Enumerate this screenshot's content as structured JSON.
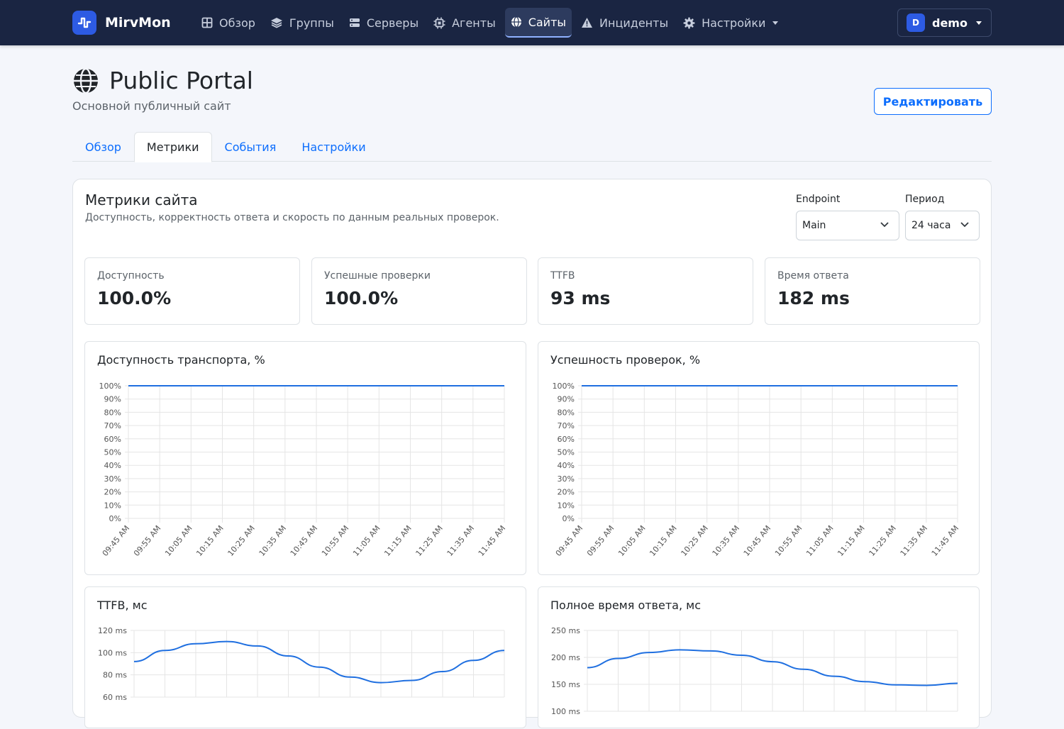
{
  "app": {
    "name": "MirvMon",
    "nav": [
      {
        "label": "Обзор",
        "icon": "grid-icon"
      },
      {
        "label": "Группы",
        "icon": "layers-icon"
      },
      {
        "label": "Серверы",
        "icon": "server-icon"
      },
      {
        "label": "Агенты",
        "icon": "chip-icon"
      },
      {
        "label": "Сайты",
        "icon": "globe-icon",
        "active": true
      },
      {
        "label": "Инциденты",
        "icon": "warning-icon"
      },
      {
        "label": "Настройки",
        "icon": "gear-icon",
        "dropdown": true
      }
    ],
    "user": {
      "initial": "D",
      "name": "demo"
    }
  },
  "page": {
    "title": "Public Portal",
    "subtitle": "Основной публичный сайт",
    "edit_label": "Редактировать"
  },
  "tabs": [
    {
      "label": "Обзор"
    },
    {
      "label": "Метрики",
      "active": true
    },
    {
      "label": "События"
    },
    {
      "label": "Настройки"
    }
  ],
  "metrics": {
    "title": "Метрики сайта",
    "description": "Доступность, корректность ответа и скорость по данным реальных проверок.",
    "endpoint": {
      "label": "Endpoint",
      "value": "Main"
    },
    "period": {
      "label": "Период",
      "value": "24 часа"
    }
  },
  "stats": [
    {
      "label": "Доступность",
      "value": "100.0%"
    },
    {
      "label": "Успешные проверки",
      "value": "100.0%"
    },
    {
      "label": "TTFB",
      "value": "93 ms"
    },
    {
      "label": "Время ответа",
      "value": "182 ms"
    }
  ],
  "colors": {
    "accent": "#0d6efd",
    "navbar": "#1a2542",
    "line": "#1f6fe0"
  },
  "chart_data": [
    {
      "type": "line",
      "title": "Доступность транспорта, %",
      "x": [
        "09:45 AM",
        "09:55 AM",
        "10:05 AM",
        "10:15 AM",
        "10:25 AM",
        "10:35 AM",
        "10:45 AM",
        "10:55 AM",
        "11:05 AM",
        "11:15 AM",
        "11:25 AM",
        "11:35 AM",
        "11:45 AM"
      ],
      "y_ticks": [
        "100%",
        "90%",
        "80%",
        "70%",
        "60%",
        "50%",
        "40%",
        "30%",
        "20%",
        "10%",
        "0%"
      ],
      "ylim": [
        0,
        100
      ],
      "series": [
        {
          "values": [
            100,
            100,
            100,
            100,
            100,
            100,
            100,
            100,
            100,
            100,
            100,
            100,
            100
          ]
        }
      ],
      "grid": true
    },
    {
      "type": "line",
      "title": "Успешность проверок, %",
      "x": [
        "09:45 AM",
        "09:55 AM",
        "10:05 AM",
        "10:15 AM",
        "10:25 AM",
        "10:35 AM",
        "10:45 AM",
        "10:55 AM",
        "11:05 AM",
        "11:15 AM",
        "11:25 AM",
        "11:35 AM",
        "11:45 AM"
      ],
      "y_ticks": [
        "100%",
        "90%",
        "80%",
        "70%",
        "60%",
        "50%",
        "40%",
        "30%",
        "20%",
        "10%",
        "0%"
      ],
      "ylim": [
        0,
        100
      ],
      "series": [
        {
          "values": [
            100,
            100,
            100,
            100,
            100,
            100,
            100,
            100,
            100,
            100,
            100,
            100,
            100
          ]
        }
      ],
      "grid": true
    },
    {
      "type": "line",
      "title": "TTFB, мс",
      "y_ticks": [
        "120 ms",
        "100 ms",
        "80 ms",
        "60 ms"
      ],
      "ylim": [
        60,
        120
      ],
      "series": [
        {
          "values": [
            92,
            102,
            108,
            110,
            106,
            97,
            87,
            78,
            73,
            75,
            83,
            93,
            102
          ]
        }
      ],
      "grid": true
    },
    {
      "type": "line",
      "title": "Полное время ответа, мс",
      "y_ticks": [
        "250 ms",
        "200 ms",
        "150 ms",
        "100 ms"
      ],
      "ylim": [
        100,
        250
      ],
      "series": [
        {
          "values": [
            181,
            198,
            209,
            214,
            212,
            204,
            192,
            178,
            165,
            155,
            149,
            148,
            152
          ]
        }
      ],
      "grid": true
    }
  ]
}
